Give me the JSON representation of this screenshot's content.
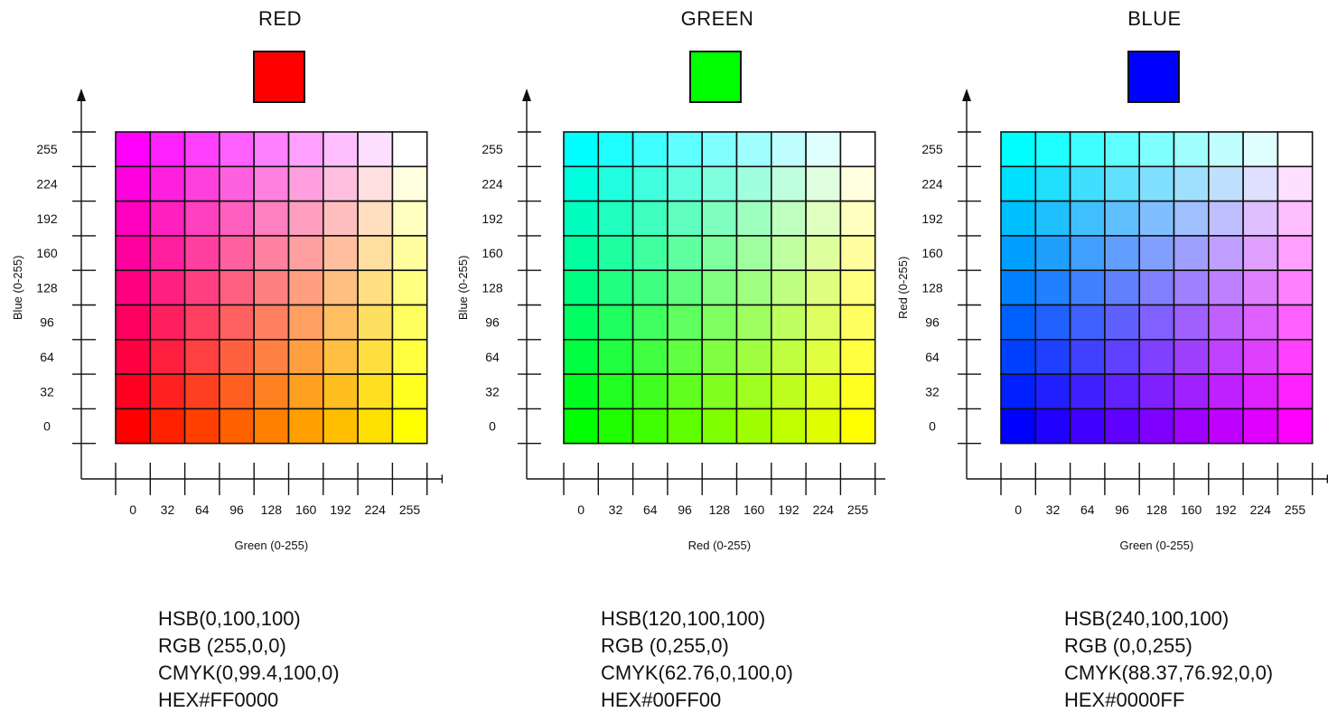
{
  "panels": [
    {
      "title": "RED",
      "swatch_color": "#FF0000",
      "base_color": "#FF0000",
      "x_axis_label": "Green (0-255)",
      "y_axis_label": "Blue (0-255)",
      "x_ticks": [
        "0",
        "32",
        "64",
        "96",
        "128",
        "160",
        "192",
        "224",
        "255"
      ],
      "y_ticks": [
        "0",
        "32",
        "64",
        "96",
        "128",
        "160",
        "192",
        "224",
        "255"
      ],
      "hsb": "HSB(0,100,100)",
      "rgb": "RGB (255,0,0)",
      "cmyk": "CMYK(0,99.4,100,0)",
      "hex": "HEX#FF0000"
    },
    {
      "title": "GREEN",
      "swatch_color": "#00FF00",
      "base_color": "#00FF00",
      "x_axis_label": "Red (0-255)",
      "y_axis_label": "Blue (0-255)",
      "x_ticks": [
        "0",
        "32",
        "64",
        "96",
        "128",
        "160",
        "192",
        "224",
        "255"
      ],
      "y_ticks": [
        "0",
        "32",
        "64",
        "96",
        "128",
        "160",
        "192",
        "224",
        "255"
      ],
      "hsb": "HSB(120,100,100)",
      "rgb": "RGB (0,255,0)",
      "cmyk": "CMYK(62.76,0,100,0)",
      "hex": "HEX#00FF00"
    },
    {
      "title": "BLUE",
      "swatch_color": "#0000FF",
      "base_color": "#0000FF",
      "x_axis_label": "Green (0-255)",
      "y_axis_label": "Red (0-255)",
      "x_ticks": [
        "0",
        "32",
        "64",
        "96",
        "128",
        "160",
        "192",
        "224",
        "255"
      ],
      "y_ticks": [
        "0",
        "32",
        "64",
        "96",
        "128",
        "160",
        "192",
        "224",
        "255"
      ],
      "hsb": "HSB(240,100,100)",
      "rgb": "RGB (0,0,255)",
      "cmyk": "CMYK(88.37,76.92,0,0)",
      "hex": "HEX#0000FF"
    }
  ]
}
